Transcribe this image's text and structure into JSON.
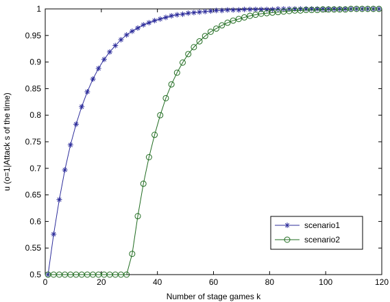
{
  "chart_data": {
    "type": "line",
    "title": "",
    "xlabel": "Number of stage games k",
    "ylabel": "u (o=1|Attack s of the time)",
    "xlim": [
      0,
      120
    ],
    "ylim": [
      0.5,
      1
    ],
    "xticks": [
      0,
      20,
      40,
      60,
      80,
      100,
      120
    ],
    "yticks": [
      0.5,
      0.55,
      0.6,
      0.65,
      0.7,
      0.75,
      0.8,
      0.85,
      0.9,
      0.95,
      1
    ],
    "xtick_labels": [
      "0",
      "20",
      "40",
      "60",
      "80",
      "100",
      "120"
    ],
    "ytick_labels": [
      "0.5",
      "0.55",
      "0.6",
      "0.65",
      "0.7",
      "0.75",
      "0.8",
      "0.85",
      "0.9",
      "0.95",
      "1"
    ],
    "grid": false,
    "legend_position": "bottom-right",
    "series": [
      {
        "name": "scenario1",
        "color": "#2b2b9a",
        "marker": "asterisk",
        "x": [
          1,
          3,
          5,
          7,
          9,
          11,
          13,
          15,
          17,
          19,
          21,
          23,
          25,
          27,
          29,
          31,
          33,
          35,
          37,
          39,
          41,
          43,
          45,
          47,
          49,
          51,
          53,
          55,
          57,
          59,
          61,
          63,
          65,
          67,
          69,
          71,
          73,
          75,
          77,
          79,
          81,
          83,
          85,
          87,
          89,
          91,
          93,
          95,
          97,
          99,
          101,
          103,
          105,
          107,
          109,
          111,
          113,
          115,
          117,
          119
        ],
        "y": [
          0.5,
          0.576,
          0.641,
          0.697,
          0.744,
          0.783,
          0.816,
          0.844,
          0.868,
          0.888,
          0.905,
          0.919,
          0.931,
          0.942,
          0.951,
          0.958,
          0.964,
          0.97,
          0.974,
          0.978,
          0.981,
          0.984,
          0.987,
          0.989,
          0.99,
          0.992,
          0.993,
          0.994,
          0.995,
          0.996,
          0.997,
          0.997,
          0.998,
          0.998,
          0.998,
          0.999,
          0.999,
          0.999,
          0.999,
          0.999,
          0.999,
          1,
          1,
          1,
          1,
          1,
          1,
          1,
          1,
          1,
          1,
          1,
          1,
          1,
          1,
          1,
          1,
          1,
          1,
          1
        ]
      },
      {
        "name": "scenario2",
        "color": "#1f6b1f",
        "marker": "circle",
        "x": [
          1,
          3,
          5,
          7,
          9,
          11,
          13,
          15,
          17,
          19,
          21,
          23,
          25,
          27,
          29,
          31,
          33,
          35,
          37,
          39,
          41,
          43,
          45,
          47,
          49,
          51,
          53,
          55,
          57,
          59,
          61,
          63,
          65,
          67,
          69,
          71,
          73,
          75,
          77,
          79,
          81,
          83,
          85,
          87,
          89,
          91,
          93,
          95,
          97,
          99,
          101,
          103,
          105,
          107,
          109,
          111,
          113,
          115,
          117,
          119
        ],
        "y": [
          0.5,
          0.5,
          0.5,
          0.5,
          0.5,
          0.5,
          0.5,
          0.5,
          0.5,
          0.5,
          0.5,
          0.5,
          0.5,
          0.5,
          0.5,
          0.539,
          0.61,
          0.671,
          0.721,
          0.763,
          0.8,
          0.832,
          0.858,
          0.88,
          0.899,
          0.915,
          0.928,
          0.939,
          0.949,
          0.957,
          0.963,
          0.969,
          0.974,
          0.978,
          0.981,
          0.984,
          0.987,
          0.989,
          0.991,
          0.992,
          0.993,
          0.994,
          0.995,
          0.996,
          0.997,
          0.997,
          0.998,
          0.998,
          0.998,
          0.999,
          0.999,
          0.999,
          0.999,
          0.999,
          1,
          1,
          1,
          1,
          1,
          1
        ]
      }
    ]
  }
}
